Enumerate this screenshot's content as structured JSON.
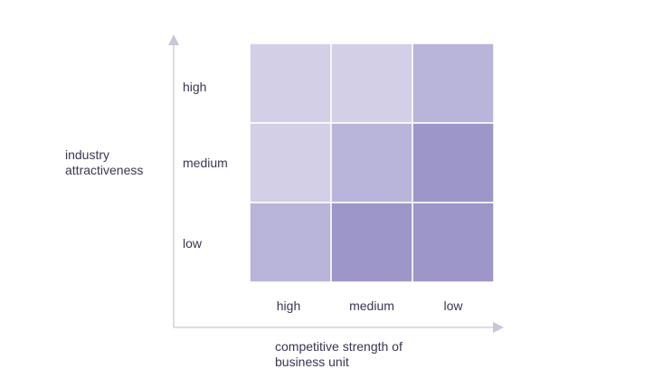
{
  "y_axis": {
    "title_line1": "industry",
    "title_line2": "attractiveness"
  },
  "x_axis": {
    "title_line1": "competitive strength of",
    "title_line2": "business unit"
  },
  "rows": [
    "high",
    "medium",
    "low"
  ],
  "columns": [
    "high",
    "medium",
    "low"
  ],
  "colors": {
    "axis": "#c9c6d6",
    "text": "#3b3553",
    "light": "#d2cfe6",
    "mid": "#b9b4d9",
    "dark": "#9d96c9",
    "grid_line": "#ffffff"
  },
  "cells": [
    [
      "light",
      "light",
      "mid"
    ],
    [
      "light",
      "mid",
      "dark"
    ],
    [
      "mid",
      "dark",
      "dark"
    ]
  ]
}
